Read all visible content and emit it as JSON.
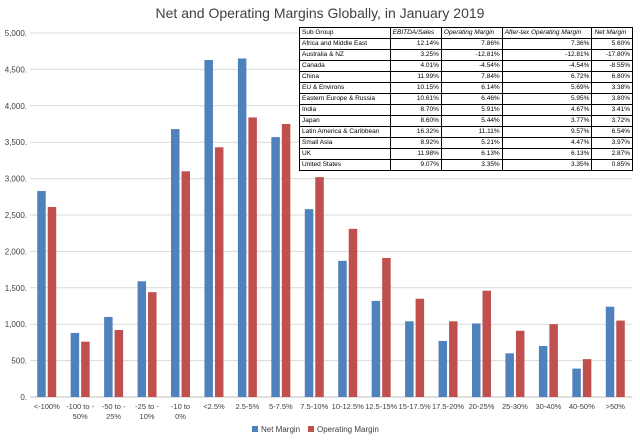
{
  "chart_data": {
    "type": "bar",
    "title": "Net and Operating Margins Globally, in January 2019",
    "categories": [
      "<-100%",
      "-100 to -50%",
      "-50 to -25%",
      "-25 to -10%",
      "-10 to 0%",
      "<2.5%",
      "2.5-5%",
      "5-7.5%",
      "7.5-10%",
      "10-12.5%",
      "12.5-15%",
      "15-17.5%",
      "17.5-20%",
      "20-25%",
      "25-30%",
      "30-40%",
      "40-50%",
      ">50%"
    ],
    "category_lines": [
      [
        "<-100%"
      ],
      [
        "-100 to -",
        "50%"
      ],
      [
        "-50 to -",
        "25%"
      ],
      [
        "-25 to -",
        "10%"
      ],
      [
        "-10 to",
        "0%"
      ],
      [
        "<2.5%"
      ],
      [
        "2.5-5%"
      ],
      [
        "5-7.5%"
      ],
      [
        "7.5-10%"
      ],
      [
        "10-12.5%"
      ],
      [
        "12.5-15%"
      ],
      [
        "15-17.5%"
      ],
      [
        "17.5-20%"
      ],
      [
        "20-25%"
      ],
      [
        "25-30%"
      ],
      [
        "30-40%"
      ],
      [
        "40-50%"
      ],
      [
        ">50%"
      ]
    ],
    "series": [
      {
        "name": "Net Margin",
        "color": "#4f81bd",
        "values": [
          2830,
          880,
          1100,
          1590,
          3680,
          4630,
          4650,
          3570,
          2580,
          1870,
          1320,
          1040,
          770,
          1010,
          600,
          700,
          390,
          1240
        ]
      },
      {
        "name": "Operating Margin",
        "color": "#c0504d",
        "values": [
          2610,
          760,
          920,
          1440,
          3100,
          3430,
          3840,
          3750,
          3020,
          2310,
          1910,
          1350,
          1040,
          1460,
          910,
          1000,
          520,
          1050
        ]
      }
    ],
    "ylim": [
      0,
      5000
    ],
    "yticks": [
      0,
      500,
      1000,
      1500,
      2000,
      2500,
      3000,
      3500,
      4000,
      4500,
      5000
    ],
    "ytick_labels": [
      "0.",
      "500.",
      "1,000.",
      "1,500.",
      "2,000.",
      "2,500.",
      "3,000.",
      "3,500.",
      "4,000.",
      "4,500.",
      "5,000."
    ],
    "grid": true,
    "legend_position": "bottom-center"
  },
  "table": {
    "headers": [
      "Sub Group",
      "EBITDA/Sales",
      "Operating Margin",
      "After-tax Operating Margin",
      "Net Margin"
    ],
    "rows": [
      [
        "Africa and Middle East",
        "12.14%",
        "7.86%",
        "7.36%",
        "5.60%"
      ],
      [
        "Australia & NZ",
        "3.25%",
        "-12.81%",
        "-12.81%",
        "-17.80%"
      ],
      [
        "Canada",
        "4.01%",
        "-4.54%",
        "-4.54%",
        "-8.55%"
      ],
      [
        "China",
        "11.99%",
        "7.84%",
        "6.72%",
        "6.80%"
      ],
      [
        "EU & Environs",
        "10.15%",
        "6.14%",
        "5.69%",
        "3.38%"
      ],
      [
        "Eastern Europe & Russia",
        "10.61%",
        "6.46%",
        "5.95%",
        "3.80%"
      ],
      [
        "India",
        "8.70%",
        "5.91%",
        "4.67%",
        "3.41%"
      ],
      [
        "Japan",
        "8.60%",
        "5.44%",
        "3.77%",
        "3.72%"
      ],
      [
        "Latin America & Caribbean",
        "16.32%",
        "11.11%",
        "9.57%",
        "6.54%"
      ],
      [
        "Small Asia",
        "8.92%",
        "5.21%",
        "4.47%",
        "3.97%"
      ],
      [
        "UK",
        "11.98%",
        "6.13%",
        "6.13%",
        "2.87%"
      ],
      [
        "United States",
        "9.07%",
        "3.35%",
        "3.35%",
        "0.85%"
      ]
    ]
  }
}
